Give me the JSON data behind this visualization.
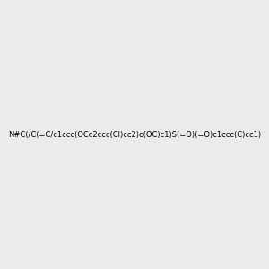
{
  "smiles": "N#C(/C(=C/c1ccc(OCc2ccc(Cl)cc2)c(OC)c1)S(=O)(=O)c1ccc(C)cc1)",
  "image_size": 300,
  "background_color": "#ebebeb",
  "title": "",
  "bond_color": "#000000",
  "atom_colors": {
    "N": "#0000ff",
    "O": "#ff0000",
    "S": "#cccc00",
    "Cl": "#00cc00",
    "C": "#000000",
    "H": "#404040"
  }
}
